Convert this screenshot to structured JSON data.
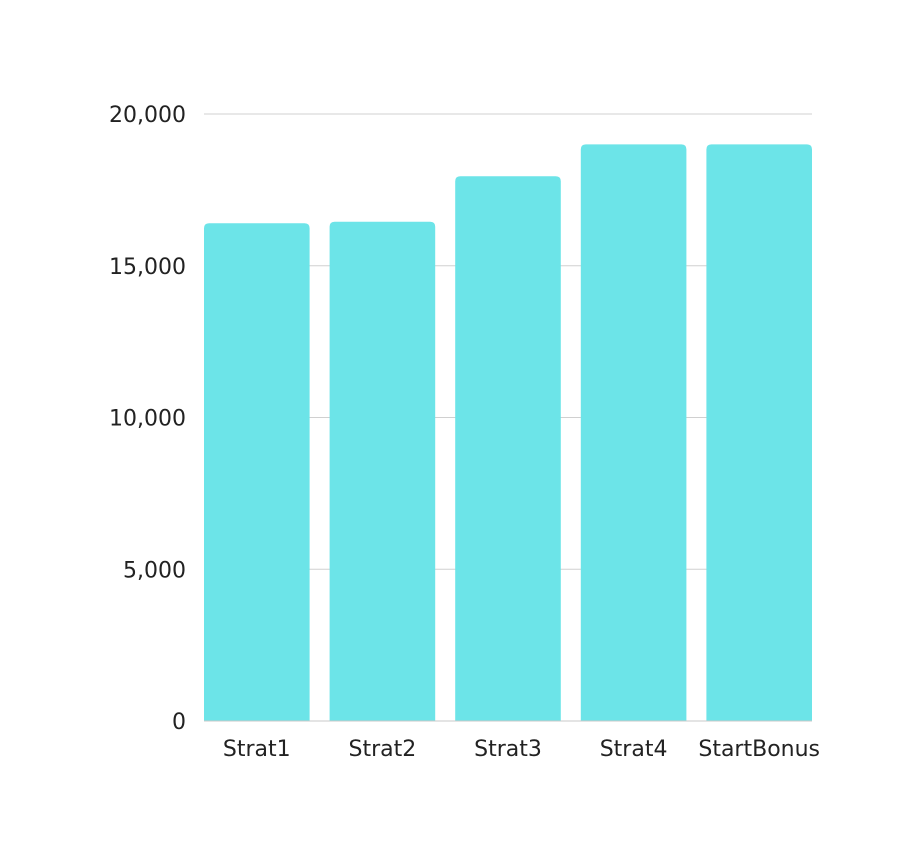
{
  "chart_data": {
    "type": "bar",
    "categories": [
      "Strat1",
      "Strat2",
      "Strat3",
      "Strat4",
      "StartBonus"
    ],
    "values": [
      16400,
      16450,
      17950,
      19000,
      19000
    ],
    "title": "",
    "xlabel": "",
    "ylabel": "",
    "ylim": [
      0,
      20000
    ],
    "yticks": [
      0,
      5000,
      10000,
      15000,
      20000
    ],
    "ytick_labels": [
      "0",
      "5,000",
      "10,000",
      "15,000",
      "20,000"
    ],
    "grid": true,
    "legend": "none",
    "colors": {
      "bar": "#6ce4e8",
      "grid": "#d0d0d0",
      "axis": "#c8c8c8",
      "text": "#222222"
    }
  }
}
